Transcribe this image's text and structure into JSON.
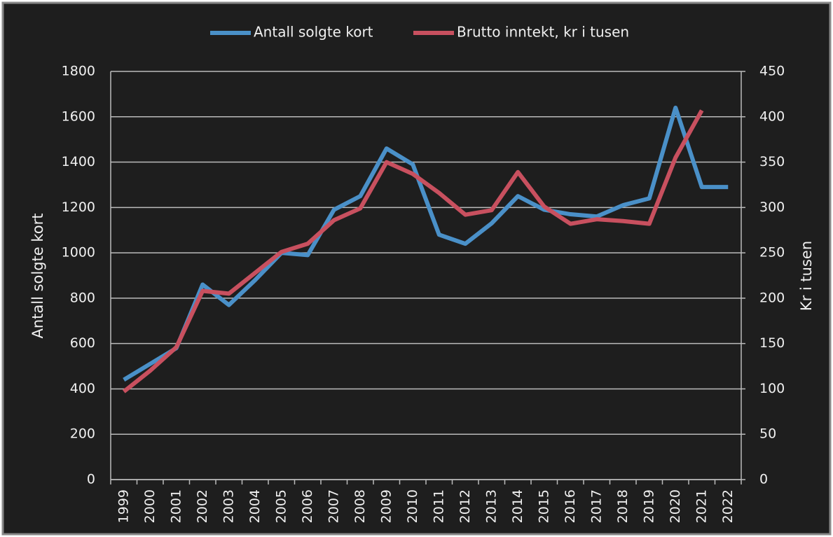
{
  "chart_data": {
    "type": "line",
    "categories": [
      "1999",
      "2000",
      "2001",
      "2002",
      "2003",
      "2004",
      "2005",
      "2006",
      "2007",
      "2008",
      "2009",
      "2010",
      "2011",
      "2012",
      "2013",
      "2014",
      "2015",
      "2016",
      "2017",
      "2018",
      "2019",
      "2020",
      "2021",
      "2022"
    ],
    "series": [
      {
        "name": "Antall solgte kort",
        "color": "#4a90c8",
        "values": [
          440,
          510,
          580,
          860,
          770,
          880,
          1000,
          990,
          1190,
          1250,
          1460,
          1390,
          1080,
          1040,
          1130,
          1250,
          1190,
          1170,
          1160,
          1210,
          1240,
          1640,
          1290,
          1290
        ]
      },
      {
        "name": "Brutto inntekt, kr i tusen",
        "color": "#c8505f",
        "axis": "y2",
        "values": [
          97,
          120,
          146,
          208,
          205,
          228,
          251,
          260,
          286,
          299,
          350,
          337,
          316,
          292,
          297,
          339,
          301,
          282,
          287,
          285,
          282,
          355,
          407,
          null
        ]
      }
    ],
    "ylabel": "Antall solgte kort",
    "y2label": "Kr i tusen",
    "ylim": [
      0,
      1800
    ],
    "yticks": [
      0,
      200,
      400,
      600,
      800,
      1000,
      1200,
      1400,
      1600,
      1800
    ],
    "y2lim": [
      0,
      450
    ],
    "y2ticks": [
      0,
      50,
      100,
      150,
      200,
      250,
      300,
      350,
      400,
      450
    ],
    "grid": true,
    "legend": "top"
  }
}
